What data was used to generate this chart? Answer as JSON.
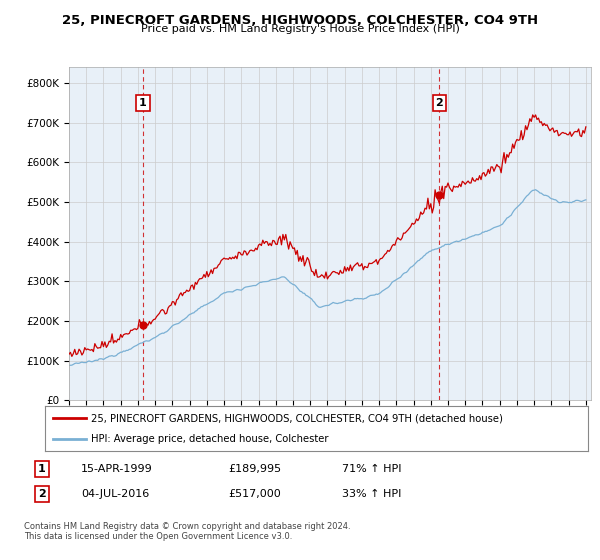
{
  "title_line1": "25, PINECROFT GARDENS, HIGHWOODS, COLCHESTER, CO4 9TH",
  "title_line2": "Price paid vs. HM Land Registry's House Price Index (HPI)",
  "xlim": [
    1995.0,
    2025.3
  ],
  "ylim": [
    0,
    840000
  ],
  "yticks": [
    0,
    100000,
    200000,
    300000,
    400000,
    500000,
    600000,
    700000,
    800000
  ],
  "ytick_labels": [
    "£0",
    "£100K",
    "£200K",
    "£300K",
    "£400K",
    "£500K",
    "£600K",
    "£700K",
    "£800K"
  ],
  "transaction1": {
    "year": 1999.29,
    "price": 189995,
    "label": "1",
    "date": "15-APR-1999",
    "price_str": "£189,995",
    "hpi_str": "71% ↑ HPI"
  },
  "transaction2": {
    "year": 2016.5,
    "price": 517000,
    "label": "2",
    "date": "04-JUL-2016",
    "price_str": "£517,000",
    "hpi_str": "33% ↑ HPI"
  },
  "line1_color": "#cc0000",
  "line2_color": "#7ab0d4",
  "fill_color": "#ddeeff",
  "legend_label1": "25, PINECROFT GARDENS, HIGHWOODS, COLCHESTER, CO4 9TH (detached house)",
  "legend_label2": "HPI: Average price, detached house, Colchester",
  "footer": "Contains HM Land Registry data © Crown copyright and database right 2024.\nThis data is licensed under the Open Government Licence v3.0.",
  "background_color": "#ffffff",
  "grid_color": "#cccccc",
  "chart_bg": "#e8f0f8"
}
